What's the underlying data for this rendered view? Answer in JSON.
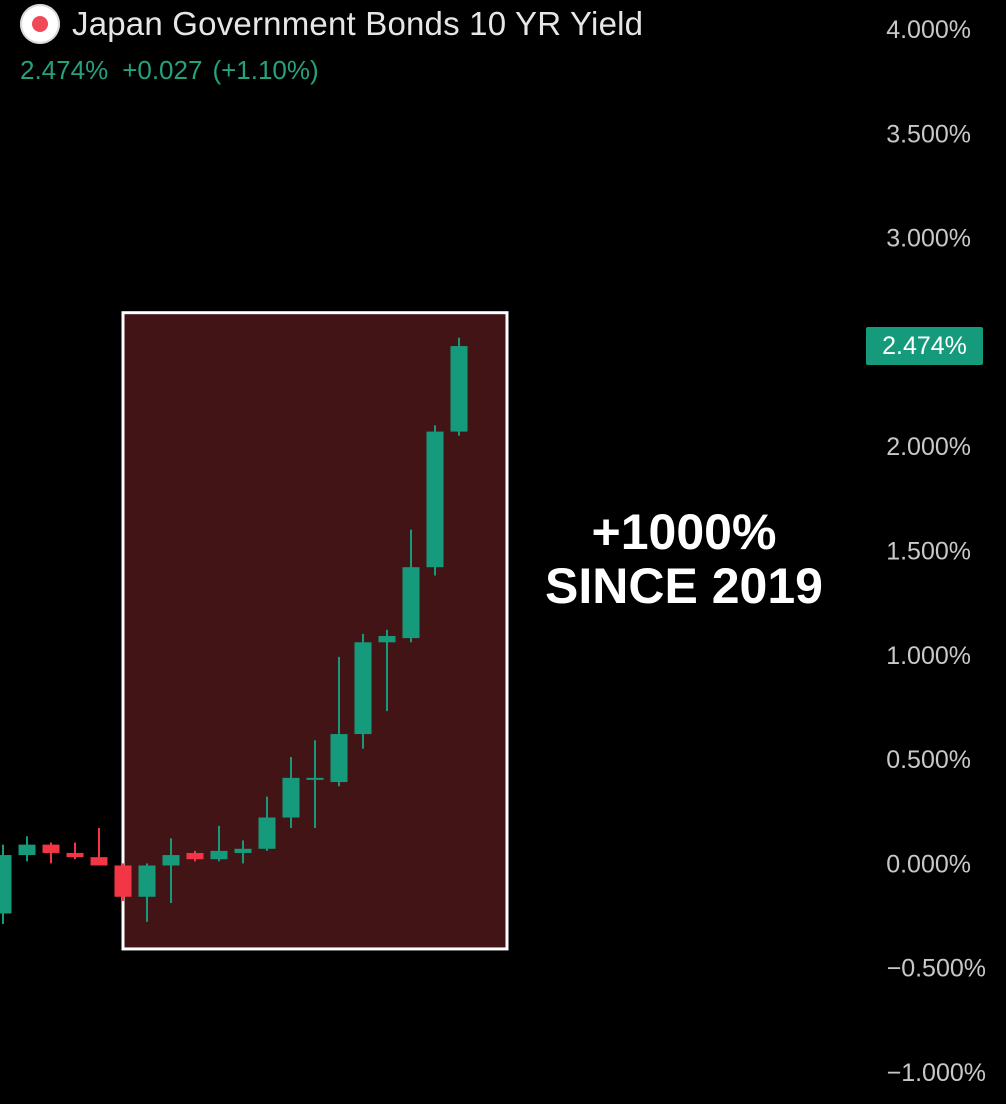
{
  "header": {
    "flag_icon": "japan-flag-icon",
    "title": "Japan Government Bonds 10 YR Yield",
    "last": "2.474%",
    "change": "+0.027",
    "change_pct": "(+1.10%)"
  },
  "annotation": {
    "line1": "+1000%",
    "line2": "SINCE 2019"
  },
  "price_tag": "2.474%",
  "colors": {
    "background": "#000000",
    "up": "#159a7c",
    "down": "#f23645",
    "highlight_fill": "#431416",
    "highlight_border": "#ffffff",
    "axis_text": "#c8c8c8"
  },
  "chart_data": {
    "type": "candlestick",
    "y_unit": "%",
    "ylim": [
      -1.0,
      4.0
    ],
    "y_ticks": [
      "4.000%",
      "3.500%",
      "3.000%",
      "2.000%",
      "1.500%",
      "1.000%",
      "0.500%",
      "0.000%",
      "−0.500%",
      "−1.000%"
    ],
    "y_tick_values": [
      4.0,
      3.5,
      3.0,
      2.0,
      1.5,
      1.0,
      0.5,
      0.0,
      -0.5,
      -1.0
    ],
    "candles": [
      {
        "o": -0.24,
        "h": 0.09,
        "l": -0.29,
        "c": 0.04
      },
      {
        "o": 0.04,
        "h": 0.13,
        "l": 0.01,
        "c": 0.09
      },
      {
        "o": 0.09,
        "h": 0.1,
        "l": 0.0,
        "c": 0.05
      },
      {
        "o": 0.05,
        "h": 0.1,
        "l": 0.02,
        "c": 0.03
      },
      {
        "o": 0.03,
        "h": 0.17,
        "l": 0.0,
        "c": -0.01
      },
      {
        "o": -0.01,
        "h": 0.0,
        "l": -0.18,
        "c": -0.16
      },
      {
        "o": -0.16,
        "h": 0.0,
        "l": -0.28,
        "c": -0.01
      },
      {
        "o": -0.01,
        "h": 0.12,
        "l": -0.19,
        "c": 0.04
      },
      {
        "o": 0.05,
        "h": 0.06,
        "l": 0.01,
        "c": 0.02
      },
      {
        "o": 0.02,
        "h": 0.18,
        "l": 0.01,
        "c": 0.06
      },
      {
        "o": 0.05,
        "h": 0.11,
        "l": 0.0,
        "c": 0.07
      },
      {
        "o": 0.07,
        "h": 0.32,
        "l": 0.06,
        "c": 0.22
      },
      {
        "o": 0.22,
        "h": 0.51,
        "l": 0.17,
        "c": 0.41
      },
      {
        "o": 0.41,
        "h": 0.59,
        "l": 0.17,
        "c": 0.41
      },
      {
        "o": 0.39,
        "h": 0.99,
        "l": 0.37,
        "c": 0.62
      },
      {
        "o": 0.62,
        "h": 1.1,
        "l": 0.55,
        "c": 1.06
      },
      {
        "o": 1.06,
        "h": 1.12,
        "l": 0.73,
        "c": 1.09
      },
      {
        "o": 1.08,
        "h": 1.6,
        "l": 1.06,
        "c": 1.42
      },
      {
        "o": 1.42,
        "h": 2.1,
        "l": 1.38,
        "c": 2.07
      },
      {
        "o": 2.07,
        "h": 2.52,
        "l": 2.05,
        "c": 2.48
      }
    ],
    "highlight_range": {
      "from_candle": 5,
      "to_candle": 19,
      "y_from": -0.41,
      "y_to": 2.64
    },
    "last_value": 2.474
  }
}
